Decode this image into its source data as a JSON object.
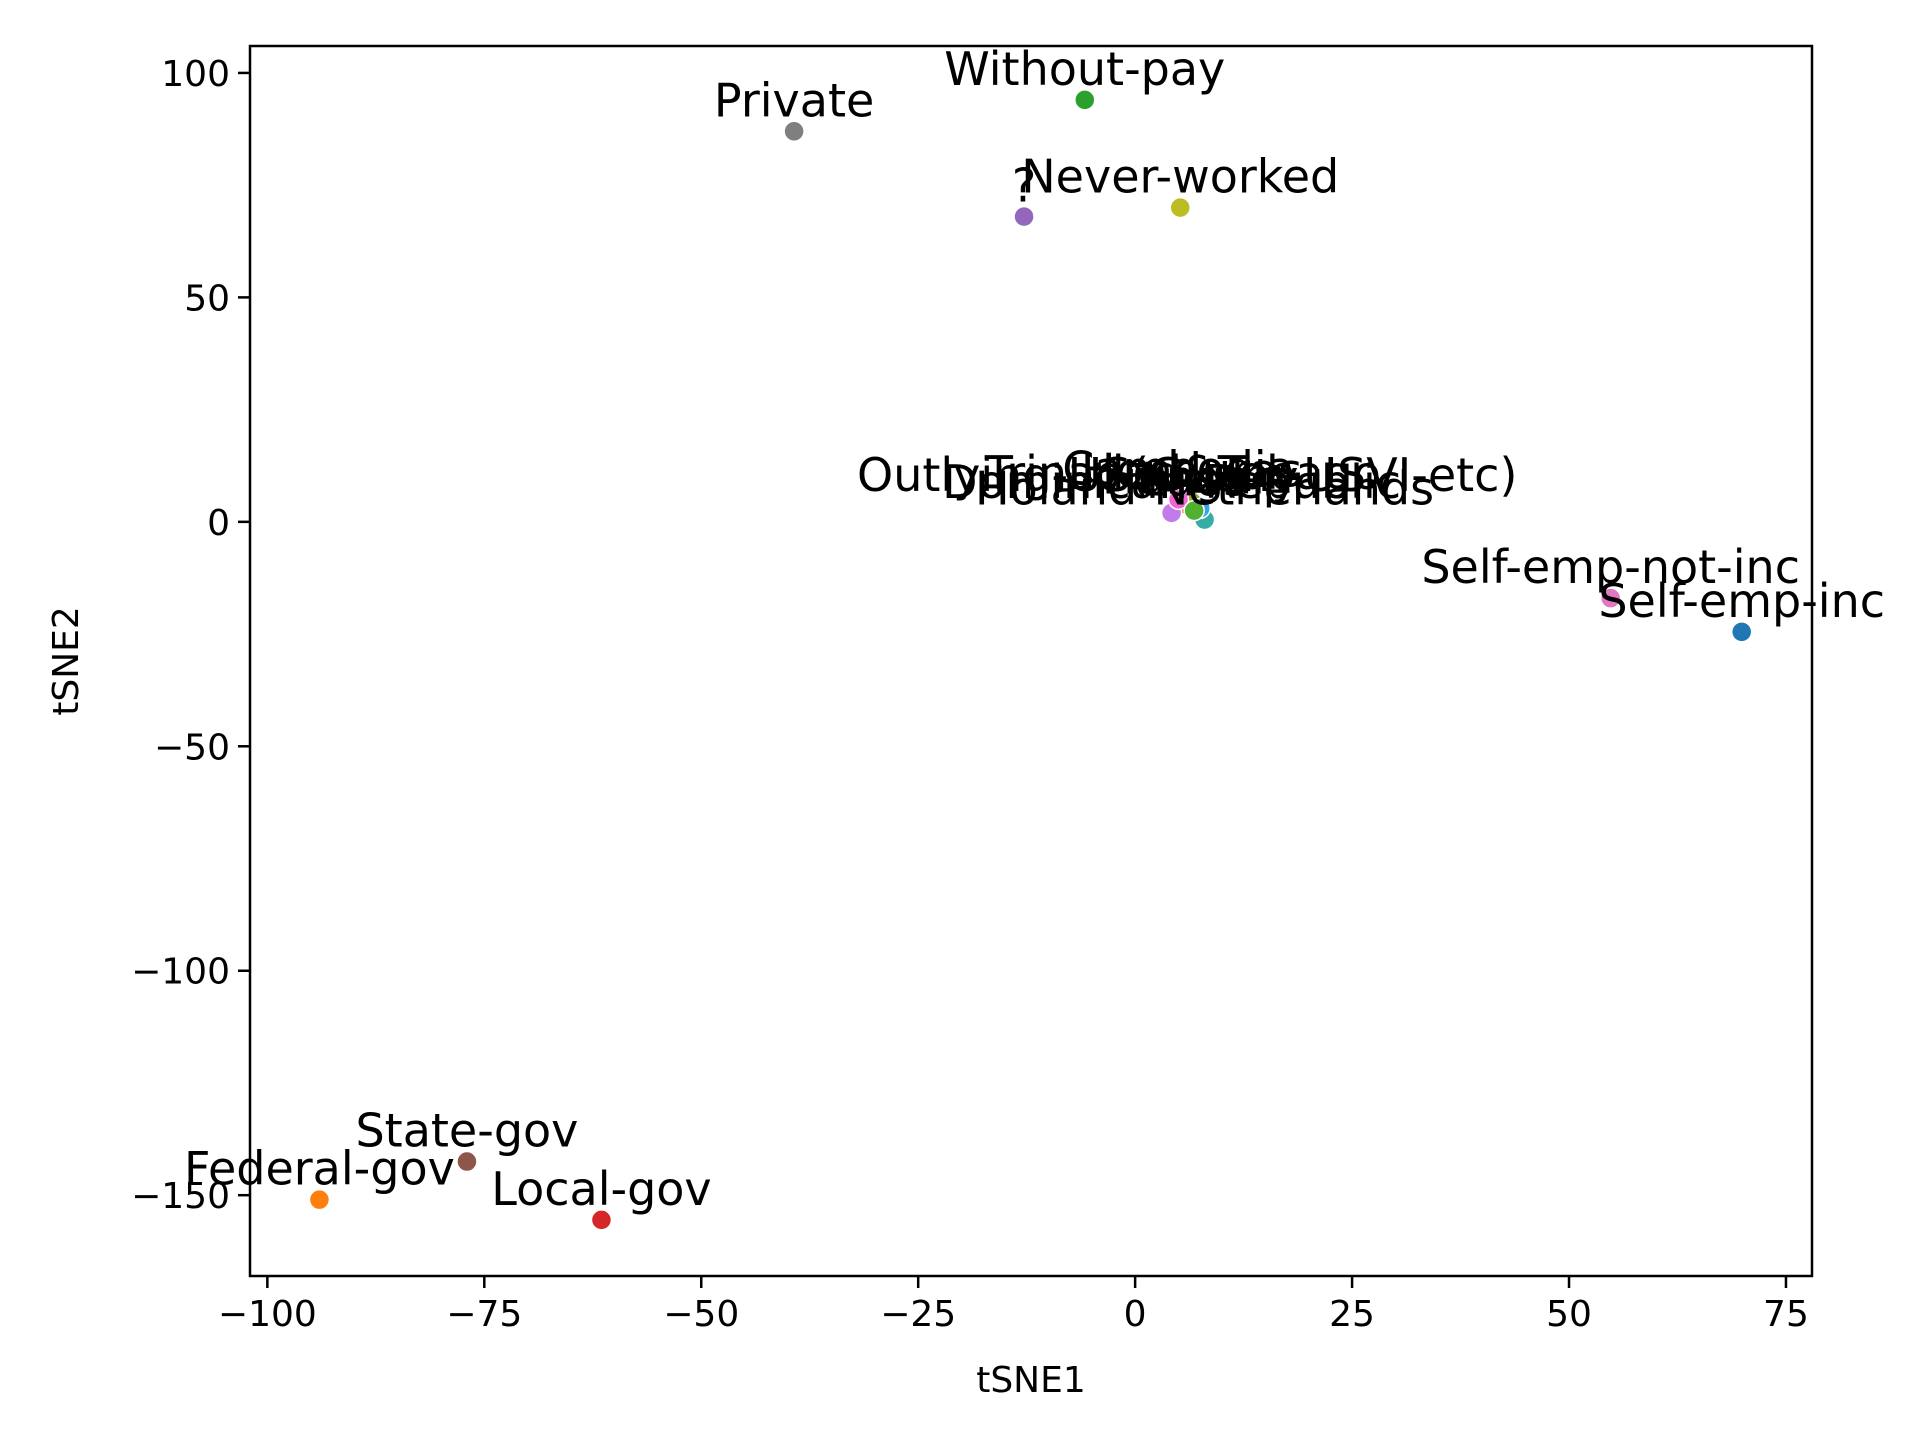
{
  "chart_data": {
    "type": "scatter",
    "title": "",
    "xlabel": "tSNE1",
    "ylabel": "tSNE2",
    "xlim": [
      -102,
      78
    ],
    "ylim": [
      -168,
      106
    ],
    "xticks": [
      -100,
      -75,
      -50,
      -25,
      0,
      25,
      50,
      75
    ],
    "yticks": [
      -150,
      -100,
      -50,
      0,
      50,
      100
    ],
    "xtick_labels": [
      "−100",
      "−75",
      "−50",
      "−25",
      "0",
      "25",
      "50",
      "75"
    ],
    "ytick_labels": [
      "−150",
      "−100",
      "−50",
      "0",
      "50",
      "100"
    ],
    "grid": false,
    "points": [
      {
        "label": "Without-pay",
        "x": -5.8,
        "y": 94,
        "color": "#2ca02c"
      },
      {
        "label": "Private",
        "x": -39.3,
        "y": 87,
        "color": "#7f7f7f"
      },
      {
        "label": "?",
        "x": -12.8,
        "y": 68,
        "color": "#9467bd"
      },
      {
        "label": "Never-worked",
        "x": 5.2,
        "y": 70,
        "color": "#bcbd22"
      },
      {
        "label": "Self-emp-not-inc",
        "x": 54.8,
        "y": -17,
        "color": "#e377c2"
      },
      {
        "label": "Self-emp-inc",
        "x": 69.9,
        "y": -24.5,
        "color": "#1f77b4"
      },
      {
        "label": "State-gov",
        "x": -77,
        "y": -142.5,
        "color": "#8c564b"
      },
      {
        "label": "Federal-gov",
        "x": -94,
        "y": -151,
        "color": "#ff7f0e"
      },
      {
        "label": "Local-gov",
        "x": -61.5,
        "y": -155.5,
        "color": "#d62728"
      },
      {
        "label": "Outlying-US(Guam-USVI-etc)",
        "x": 6,
        "y": 3.5,
        "color": "#f77189"
      },
      {
        "label": "Trinadad&Tobago",
        "x": 5.5,
        "y": 4,
        "color": "#dc8932"
      },
      {
        "label": "Dominican-Republic",
        "x": 4.2,
        "y": 2,
        "color": "#c17bea"
      },
      {
        "label": "Holand-Netherlands",
        "x": 8,
        "y": 0.5,
        "color": "#36ada4"
      },
      {
        "label": "Honduras",
        "x": 6.5,
        "y": 4.5,
        "color": "#97a431"
      },
      {
        "label": "Hungary",
        "x": 7.5,
        "y": 3,
        "color": "#3ba3ec"
      },
      {
        "label": "Cambodia",
        "x": 5,
        "y": 5,
        "color": "#f564d4"
      },
      {
        "label": "Laos",
        "x": 6.8,
        "y": 2.5,
        "color": "#50b131"
      }
    ]
  }
}
